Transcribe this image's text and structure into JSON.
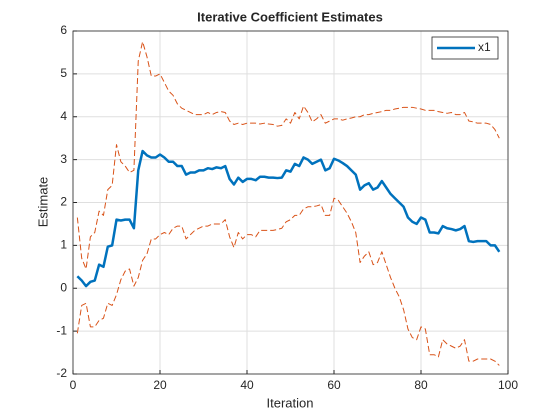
{
  "chart_data": {
    "type": "line",
    "title": "Iterative  Coefficient  Estimates",
    "x_label": "Iteration",
    "y_label": "Estimate",
    "x": [
      1,
      2,
      3,
      4,
      5,
      6,
      7,
      8,
      9,
      10,
      11,
      12,
      13,
      14,
      15,
      16,
      17,
      18,
      19,
      20,
      21,
      22,
      23,
      24,
      25,
      26,
      27,
      28,
      29,
      30,
      31,
      32,
      33,
      34,
      35,
      36,
      37,
      38,
      39,
      40,
      41,
      42,
      43,
      44,
      45,
      46,
      47,
      48,
      49,
      50,
      51,
      52,
      53,
      54,
      55,
      56,
      57,
      58,
      59,
      60,
      61,
      62,
      63,
      64,
      65,
      66,
      67,
      68,
      69,
      70,
      71,
      72,
      73,
      74,
      75,
      76,
      77,
      78,
      79,
      80,
      81,
      82,
      83,
      84,
      85,
      86,
      87,
      88,
      89,
      90,
      91,
      92,
      93,
      94,
      95,
      96,
      97,
      98
    ],
    "series": [
      {
        "name": "x1",
        "color": "#0072bd",
        "dashed": false,
        "values": [
          0.28,
          0.18,
          0.05,
          0.15,
          0.18,
          0.55,
          0.5,
          0.97,
          1.0,
          1.6,
          1.58,
          1.6,
          1.6,
          1.4,
          2.75,
          3.2,
          3.1,
          3.05,
          3.05,
          3.12,
          3.05,
          2.95,
          2.95,
          2.85,
          2.85,
          2.65,
          2.7,
          2.7,
          2.75,
          2.75,
          2.8,
          2.78,
          2.82,
          2.8,
          2.85,
          2.55,
          2.42,
          2.58,
          2.48,
          2.55,
          2.55,
          2.52,
          2.6,
          2.6,
          2.58,
          2.58,
          2.57,
          2.58,
          2.75,
          2.72,
          2.9,
          2.85,
          3.05,
          3.0,
          2.9,
          2.95,
          3.0,
          2.75,
          2.8,
          3.02,
          2.98,
          2.92,
          2.85,
          2.75,
          2.65,
          2.3,
          2.4,
          2.45,
          2.3,
          2.35,
          2.5,
          2.35,
          2.2,
          2.1,
          2.0,
          1.9,
          1.65,
          1.55,
          1.5,
          1.65,
          1.6,
          1.3,
          1.3,
          1.28,
          1.45,
          1.4,
          1.38,
          1.35,
          1.38,
          1.45,
          1.1,
          1.08,
          1.1,
          1.1,
          1.1,
          1.0,
          1.0,
          0.85
        ]
      },
      {
        "color": "#d95319",
        "dashed": true,
        "values": [
          1.65,
          0.7,
          0.45,
          1.2,
          1.3,
          1.8,
          1.7,
          2.3,
          2.4,
          3.35,
          2.95,
          2.85,
          2.7,
          2.75,
          5.3,
          5.75,
          5.4,
          4.95,
          4.95,
          5.0,
          4.8,
          4.6,
          4.5,
          4.3,
          4.2,
          4.15,
          4.1,
          4.05,
          4.05,
          4.05,
          4.1,
          4.05,
          4.1,
          4.12,
          4.1,
          3.9,
          3.82,
          3.85,
          3.82,
          3.85,
          3.85,
          3.85,
          3.83,
          3.85,
          3.83,
          3.82,
          3.78,
          3.8,
          3.95,
          3.85,
          4.1,
          3.95,
          4.25,
          4.1,
          3.88,
          3.95,
          4.05,
          3.85,
          3.9,
          3.95,
          3.95,
          3.92,
          3.95,
          3.97,
          4.0,
          4.0,
          4.05,
          4.05,
          4.08,
          4.1,
          4.12,
          4.15,
          4.15,
          4.18,
          4.2,
          4.22,
          4.22,
          4.22,
          4.2,
          4.18,
          4.15,
          4.15,
          4.15,
          4.12,
          4.1,
          4.08,
          4.1,
          4.05,
          4.05,
          4.1,
          3.9,
          3.88,
          3.85,
          3.85,
          3.85,
          3.82,
          3.7,
          3.5
        ]
      },
      {
        "color": "#d95319",
        "dashed": true,
        "values": [
          -1.05,
          -0.4,
          -0.35,
          -0.9,
          -0.9,
          -0.75,
          -0.7,
          -0.35,
          -0.4,
          -0.15,
          0.2,
          0.4,
          0.45,
          0.05,
          0.25,
          0.65,
          0.8,
          1.15,
          1.15,
          1.25,
          1.3,
          1.25,
          1.4,
          1.45,
          1.45,
          1.15,
          1.25,
          1.35,
          1.4,
          1.45,
          1.45,
          1.5,
          1.5,
          1.5,
          1.6,
          1.2,
          0.95,
          1.3,
          1.15,
          1.25,
          1.25,
          1.2,
          1.35,
          1.35,
          1.35,
          1.35,
          1.37,
          1.4,
          1.55,
          1.6,
          1.7,
          1.7,
          1.85,
          1.9,
          1.9,
          1.92,
          1.95,
          1.7,
          1.7,
          2.1,
          2.05,
          1.9,
          1.75,
          1.55,
          1.3,
          0.6,
          0.75,
          0.85,
          0.55,
          0.6,
          0.85,
          0.55,
          0.25,
          0.0,
          -0.2,
          -0.5,
          -0.95,
          -1.15,
          -1.2,
          -0.9,
          -0.95,
          -1.55,
          -1.55,
          -1.6,
          -1.2,
          -1.3,
          -1.35,
          -1.4,
          -1.35,
          -1.2,
          -1.7,
          -1.7,
          -1.65,
          -1.65,
          -1.65,
          -1.65,
          -1.7,
          -1.8
        ]
      }
    ],
    "xlim": [
      0,
      100
    ],
    "xticks": [
      0,
      20,
      40,
      60,
      80,
      100
    ],
    "ylim": [
      -2,
      6
    ],
    "yticks": [
      -2,
      -1,
      0,
      1,
      2,
      3,
      4,
      5,
      6
    ],
    "grid": true,
    "legend": "northeast"
  }
}
